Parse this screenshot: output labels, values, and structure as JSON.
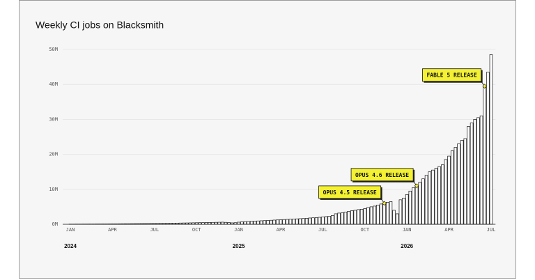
{
  "chart_data": {
    "type": "bar",
    "title": "Weekly CI jobs on Blacksmith",
    "categories": [
      "JAN",
      null,
      null,
      null,
      null,
      null,
      null,
      null,
      null,
      null,
      null,
      null,
      null,
      "APR",
      null,
      null,
      null,
      null,
      null,
      null,
      null,
      null,
      null,
      null,
      null,
      null,
      "JUL",
      null,
      null,
      null,
      null,
      null,
      null,
      null,
      null,
      null,
      null,
      null,
      null,
      "OCT",
      null,
      null,
      null,
      null,
      null,
      null,
      null,
      null,
      null,
      null,
      null,
      null,
      "JAN",
      null,
      null,
      null,
      null,
      null,
      null,
      null,
      null,
      null,
      null,
      null,
      null,
      "APR",
      null,
      null,
      null,
      null,
      null,
      null,
      null,
      null,
      null,
      null,
      null,
      null,
      "JUL",
      null,
      null,
      null,
      null,
      null,
      null,
      null,
      null,
      null,
      null,
      null,
      null,
      "OCT",
      null,
      null,
      null,
      null,
      null,
      null,
      null,
      null,
      null,
      null,
      null,
      null,
      "JAN",
      null,
      null,
      null,
      null,
      null,
      null,
      null,
      null,
      null,
      null,
      null,
      null,
      "APR",
      null,
      null,
      null,
      null,
      null,
      null,
      null,
      null,
      null,
      null,
      null,
      null,
      "JUL"
    ],
    "years": [
      "2024",
      null,
      null,
      null,
      null,
      null,
      null,
      null,
      null,
      null,
      null,
      null,
      null,
      null,
      null,
      null,
      null,
      null,
      null,
      null,
      null,
      null,
      null,
      null,
      null,
      null,
      null,
      null,
      null,
      null,
      null,
      null,
      null,
      null,
      null,
      null,
      null,
      null,
      null,
      null,
      null,
      null,
      null,
      null,
      null,
      null,
      null,
      null,
      null,
      null,
      null,
      null,
      "2025",
      null,
      null,
      null,
      null,
      null,
      null,
      null,
      null,
      null,
      null,
      null,
      null,
      null,
      null,
      null,
      null,
      null,
      null,
      null,
      null,
      null,
      null,
      null,
      null,
      null,
      null,
      null,
      null,
      null,
      null,
      null,
      null,
      null,
      null,
      null,
      null,
      null,
      null,
      null,
      null,
      null,
      null,
      null,
      null,
      null,
      null,
      null,
      null,
      null,
      null,
      null,
      "2026",
      null,
      null,
      null,
      null,
      null,
      null,
      null,
      null,
      null,
      null,
      null,
      null,
      null,
      null,
      null,
      null,
      null,
      null,
      null,
      null,
      null,
      null,
      null,
      null,
      null,
      null
    ],
    "values": [
      0.05,
      0.05,
      0.06,
      0.06,
      0.07,
      0.07,
      0.08,
      0.08,
      0.09,
      0.09,
      0.1,
      0.1,
      0.11,
      0.12,
      0.12,
      0.13,
      0.14,
      0.15,
      0.15,
      0.16,
      0.17,
      0.18,
      0.19,
      0.2,
      0.21,
      0.22,
      0.23,
      0.24,
      0.25,
      0.26,
      0.28,
      0.3,
      0.32,
      0.33,
      0.35,
      0.37,
      0.38,
      0.4,
      0.42,
      0.44,
      0.46,
      0.48,
      0.5,
      0.52,
      0.54,
      0.56,
      0.58,
      0.6,
      0.55,
      0.5,
      0.4,
      0.45,
      0.6,
      0.7,
      0.75,
      0.8,
      0.85,
      0.9,
      0.95,
      1,
      1.05,
      1.1,
      1.15,
      1.2,
      1.25,
      1.3,
      1.35,
      1.4,
      1.45,
      1.5,
      1.55,
      1.6,
      1.65,
      1.7,
      1.8,
      1.85,
      1.9,
      2,
      2.1,
      2.2,
      2.3,
      2.5,
      3,
      3.2,
      3.3,
      3.5,
      3.7,
      3.9,
      4,
      4.2,
      4.3,
      4.5,
      4.8,
      5,
      5.2,
      5.5,
      5.8,
      6,
      6.3,
      6.5,
      4,
      3,
      7,
      7.5,
      8.5,
      9.5,
      10.5,
      11,
      12,
      13,
      14,
      15,
      15.5,
      16,
      16.5,
      17,
      18.5,
      19.5,
      21,
      22,
      23,
      24,
      24.5,
      28,
      29,
      30,
      30.5,
      31,
      39.5,
      43.5,
      48.5
    ],
    "color": "#ffffff",
    "edge_color": "#111111",
    "ylim": [
      0,
      50
    ],
    "yticks": [
      {
        "value": 0,
        "label": "0M"
      },
      {
        "value": 10,
        "label": "10M"
      },
      {
        "value": 20,
        "label": "20M"
      },
      {
        "value": 30,
        "label": "30M"
      },
      {
        "value": 40,
        "label": "40M"
      },
      {
        "value": 50,
        "label": "50M"
      }
    ],
    "grid": true,
    "annotations": [
      {
        "text": "OPUS 4.5 RELEASE",
        "index": 97
      },
      {
        "text": "OPUS 4.6 RELEASE",
        "index": 107
      },
      {
        "text": "FABLE 5 RELEASE",
        "index": 128
      }
    ],
    "annotation_color": "#f4f133"
  }
}
